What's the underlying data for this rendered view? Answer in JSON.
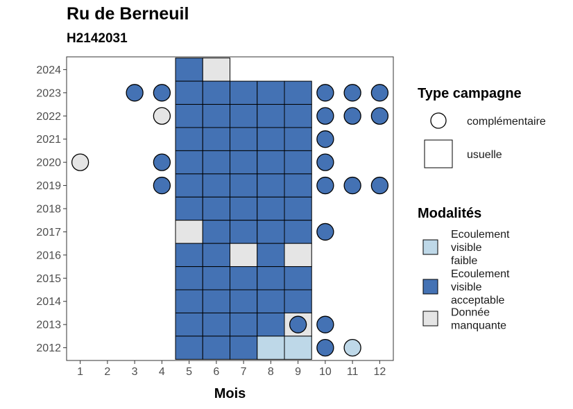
{
  "title": "Ru de Berneuil",
  "subtitle": "H2142031",
  "chart_data": {
    "type": "heatmap",
    "title": "Ru de Berneuil",
    "subtitle": "H2142031",
    "xlabel": "Mois",
    "ylabel": "",
    "x_ticks": [
      "1",
      "2",
      "3",
      "4",
      "5",
      "6",
      "7",
      "8",
      "9",
      "10",
      "11",
      "12"
    ],
    "y_ticks": [
      "2012",
      "2013",
      "2014",
      "2015",
      "2016",
      "2017",
      "2018",
      "2019",
      "2020",
      "2021",
      "2022",
      "2023",
      "2024"
    ],
    "xlim": [
      0.5,
      12.5
    ],
    "ylim": [
      2011.45,
      2024.55
    ],
    "grid": false,
    "legend_position": "right",
    "colors": {
      "Ecoulement visible faible": "#bed8e8",
      "Ecoulement visible acceptable": "#4472b4",
      "Donnée manquante": "#e5e5e5"
    },
    "legend_shape": {
      "title": "Type campagne",
      "entries": [
        {
          "label": "complémentaire",
          "shape": "circle"
        },
        {
          "label": "usuelle",
          "shape": "square"
        }
      ]
    },
    "legend_fill": {
      "title": "Modalités",
      "entries": [
        {
          "label_lines": [
            "Ecoulement",
            "visible",
            "faible"
          ],
          "key": "Ecoulement visible faible"
        },
        {
          "label_lines": [
            "Ecoulement",
            "visible",
            "acceptable"
          ],
          "key": "Ecoulement visible acceptable"
        },
        {
          "label_lines": [
            "Donnée",
            "manquante"
          ],
          "key": "Donnée manquante"
        }
      ]
    },
    "points": [
      {
        "year": 2024,
        "month": 5,
        "campaign": "usuelle",
        "modality": "Ecoulement visible acceptable"
      },
      {
        "year": 2024,
        "month": 6,
        "campaign": "usuelle",
        "modality": "Donnée manquante"
      },
      {
        "year": 2023,
        "month": 3,
        "campaign": "complémentaire",
        "modality": "Ecoulement visible acceptable"
      },
      {
        "year": 2023,
        "month": 4,
        "campaign": "complémentaire",
        "modality": "Ecoulement visible acceptable"
      },
      {
        "year": 2023,
        "month": 5,
        "campaign": "usuelle",
        "modality": "Ecoulement visible acceptable"
      },
      {
        "year": 2023,
        "month": 6,
        "campaign": "usuelle",
        "modality": "Ecoulement visible acceptable"
      },
      {
        "year": 2023,
        "month": 7,
        "campaign": "usuelle",
        "modality": "Ecoulement visible acceptable"
      },
      {
        "year": 2023,
        "month": 8,
        "campaign": "usuelle",
        "modality": "Ecoulement visible acceptable"
      },
      {
        "year": 2023,
        "month": 9,
        "campaign": "usuelle",
        "modality": "Ecoulement visible acceptable"
      },
      {
        "year": 2023,
        "month": 10,
        "campaign": "complémentaire",
        "modality": "Ecoulement visible acceptable"
      },
      {
        "year": 2023,
        "month": 11,
        "campaign": "complémentaire",
        "modality": "Ecoulement visible acceptable"
      },
      {
        "year": 2023,
        "month": 12,
        "campaign": "complémentaire",
        "modality": "Ecoulement visible acceptable"
      },
      {
        "year": 2022,
        "month": 4,
        "campaign": "complémentaire",
        "modality": "Donnée manquante"
      },
      {
        "year": 2022,
        "month": 5,
        "campaign": "usuelle",
        "modality": "Ecoulement visible acceptable"
      },
      {
        "year": 2022,
        "month": 6,
        "campaign": "usuelle",
        "modality": "Ecoulement visible acceptable"
      },
      {
        "year": 2022,
        "month": 7,
        "campaign": "usuelle",
        "modality": "Ecoulement visible acceptable"
      },
      {
        "year": 2022,
        "month": 8,
        "campaign": "usuelle",
        "modality": "Ecoulement visible acceptable"
      },
      {
        "year": 2022,
        "month": 9,
        "campaign": "usuelle",
        "modality": "Ecoulement visible acceptable"
      },
      {
        "year": 2022,
        "month": 10,
        "campaign": "complémentaire",
        "modality": "Ecoulement visible acceptable"
      },
      {
        "year": 2022,
        "month": 11,
        "campaign": "complémentaire",
        "modality": "Ecoulement visible acceptable"
      },
      {
        "year": 2022,
        "month": 12,
        "campaign": "complémentaire",
        "modality": "Ecoulement visible acceptable"
      },
      {
        "year": 2021,
        "month": 5,
        "campaign": "usuelle",
        "modality": "Ecoulement visible acceptable"
      },
      {
        "year": 2021,
        "month": 6,
        "campaign": "usuelle",
        "modality": "Ecoulement visible acceptable"
      },
      {
        "year": 2021,
        "month": 7,
        "campaign": "usuelle",
        "modality": "Ecoulement visible acceptable"
      },
      {
        "year": 2021,
        "month": 8,
        "campaign": "usuelle",
        "modality": "Ecoulement visible acceptable"
      },
      {
        "year": 2021,
        "month": 9,
        "campaign": "usuelle",
        "modality": "Ecoulement visible acceptable"
      },
      {
        "year": 2021,
        "month": 10,
        "campaign": "complémentaire",
        "modality": "Ecoulement visible acceptable"
      },
      {
        "year": 2020,
        "month": 1,
        "campaign": "complémentaire",
        "modality": "Donnée manquante"
      },
      {
        "year": 2020,
        "month": 4,
        "campaign": "complémentaire",
        "modality": "Ecoulement visible acceptable"
      },
      {
        "year": 2020,
        "month": 5,
        "campaign": "usuelle",
        "modality": "Ecoulement visible acceptable"
      },
      {
        "year": 2020,
        "month": 6,
        "campaign": "usuelle",
        "modality": "Ecoulement visible acceptable"
      },
      {
        "year": 2020,
        "month": 7,
        "campaign": "usuelle",
        "modality": "Ecoulement visible acceptable"
      },
      {
        "year": 2020,
        "month": 8,
        "campaign": "usuelle",
        "modality": "Ecoulement visible acceptable"
      },
      {
        "year": 2020,
        "month": 9,
        "campaign": "usuelle",
        "modality": "Ecoulement visible acceptable"
      },
      {
        "year": 2020,
        "month": 10,
        "campaign": "complémentaire",
        "modality": "Ecoulement visible acceptable"
      },
      {
        "year": 2019,
        "month": 4,
        "campaign": "complémentaire",
        "modality": "Ecoulement visible acceptable"
      },
      {
        "year": 2019,
        "month": 5,
        "campaign": "usuelle",
        "modality": "Ecoulement visible acceptable"
      },
      {
        "year": 2019,
        "month": 6,
        "campaign": "usuelle",
        "modality": "Ecoulement visible acceptable"
      },
      {
        "year": 2019,
        "month": 7,
        "campaign": "usuelle",
        "modality": "Ecoulement visible acceptable"
      },
      {
        "year": 2019,
        "month": 8,
        "campaign": "usuelle",
        "modality": "Ecoulement visible acceptable"
      },
      {
        "year": 2019,
        "month": 9,
        "campaign": "usuelle",
        "modality": "Ecoulement visible acceptable"
      },
      {
        "year": 2019,
        "month": 10,
        "campaign": "complémentaire",
        "modality": "Ecoulement visible acceptable"
      },
      {
        "year": 2019,
        "month": 11,
        "campaign": "complémentaire",
        "modality": "Ecoulement visible acceptable"
      },
      {
        "year": 2019,
        "month": 12,
        "campaign": "complémentaire",
        "modality": "Ecoulement visible acceptable"
      },
      {
        "year": 2018,
        "month": 5,
        "campaign": "usuelle",
        "modality": "Ecoulement visible acceptable"
      },
      {
        "year": 2018,
        "month": 6,
        "campaign": "usuelle",
        "modality": "Ecoulement visible acceptable"
      },
      {
        "year": 2018,
        "month": 7,
        "campaign": "usuelle",
        "modality": "Ecoulement visible acceptable"
      },
      {
        "year": 2018,
        "month": 8,
        "campaign": "usuelle",
        "modality": "Ecoulement visible acceptable"
      },
      {
        "year": 2018,
        "month": 9,
        "campaign": "usuelle",
        "modality": "Ecoulement visible acceptable"
      },
      {
        "year": 2017,
        "month": 5,
        "campaign": "usuelle",
        "modality": "Donnée manquante"
      },
      {
        "year": 2017,
        "month": 6,
        "campaign": "usuelle",
        "modality": "Ecoulement visible acceptable"
      },
      {
        "year": 2017,
        "month": 7,
        "campaign": "usuelle",
        "modality": "Ecoulement visible acceptable"
      },
      {
        "year": 2017,
        "month": 8,
        "campaign": "usuelle",
        "modality": "Ecoulement visible acceptable"
      },
      {
        "year": 2017,
        "month": 9,
        "campaign": "usuelle",
        "modality": "Ecoulement visible acceptable"
      },
      {
        "year": 2017,
        "month": 10,
        "campaign": "complémentaire",
        "modality": "Ecoulement visible acceptable"
      },
      {
        "year": 2016,
        "month": 5,
        "campaign": "usuelle",
        "modality": "Ecoulement visible acceptable"
      },
      {
        "year": 2016,
        "month": 6,
        "campaign": "usuelle",
        "modality": "Ecoulement visible acceptable"
      },
      {
        "year": 2016,
        "month": 7,
        "campaign": "usuelle",
        "modality": "Donnée manquante"
      },
      {
        "year": 2016,
        "month": 8,
        "campaign": "usuelle",
        "modality": "Ecoulement visible acceptable"
      },
      {
        "year": 2016,
        "month": 9,
        "campaign": "usuelle",
        "modality": "Donnée manquante"
      },
      {
        "year": 2015,
        "month": 5,
        "campaign": "usuelle",
        "modality": "Ecoulement visible acceptable"
      },
      {
        "year": 2015,
        "month": 6,
        "campaign": "usuelle",
        "modality": "Ecoulement visible acceptable"
      },
      {
        "year": 2015,
        "month": 7,
        "campaign": "usuelle",
        "modality": "Ecoulement visible acceptable"
      },
      {
        "year": 2015,
        "month": 8,
        "campaign": "usuelle",
        "modality": "Ecoulement visible acceptable"
      },
      {
        "year": 2015,
        "month": 9,
        "campaign": "usuelle",
        "modality": "Ecoulement visible acceptable"
      },
      {
        "year": 2014,
        "month": 5,
        "campaign": "usuelle",
        "modality": "Ecoulement visible acceptable"
      },
      {
        "year": 2014,
        "month": 6,
        "campaign": "usuelle",
        "modality": "Ecoulement visible acceptable"
      },
      {
        "year": 2014,
        "month": 7,
        "campaign": "usuelle",
        "modality": "Ecoulement visible acceptable"
      },
      {
        "year": 2014,
        "month": 8,
        "campaign": "usuelle",
        "modality": "Ecoulement visible acceptable"
      },
      {
        "year": 2014,
        "month": 9,
        "campaign": "usuelle",
        "modality": "Ecoulement visible acceptable"
      },
      {
        "year": 2013,
        "month": 5,
        "campaign": "usuelle",
        "modality": "Ecoulement visible acceptable"
      },
      {
        "year": 2013,
        "month": 6,
        "campaign": "usuelle",
        "modality": "Ecoulement visible acceptable"
      },
      {
        "year": 2013,
        "month": 7,
        "campaign": "usuelle",
        "modality": "Ecoulement visible acceptable"
      },
      {
        "year": 2013,
        "month": 8,
        "campaign": "usuelle",
        "modality": "Ecoulement visible acceptable"
      },
      {
        "year": 2013,
        "month": 9,
        "campaign": "usuelle",
        "modality": "Donnée manquante"
      },
      {
        "year": 2013,
        "month": 9,
        "campaign": "complémentaire",
        "modality": "Ecoulement visible acceptable"
      },
      {
        "year": 2013,
        "month": 10,
        "campaign": "complémentaire",
        "modality": "Ecoulement visible acceptable"
      },
      {
        "year": 2012,
        "month": 5,
        "campaign": "usuelle",
        "modality": "Ecoulement visible acceptable"
      },
      {
        "year": 2012,
        "month": 6,
        "campaign": "usuelle",
        "modality": "Ecoulement visible acceptable"
      },
      {
        "year": 2012,
        "month": 7,
        "campaign": "usuelle",
        "modality": "Ecoulement visible acceptable"
      },
      {
        "year": 2012,
        "month": 8,
        "campaign": "usuelle",
        "modality": "Ecoulement visible faible"
      },
      {
        "year": 2012,
        "month": 9,
        "campaign": "usuelle",
        "modality": "Ecoulement visible faible"
      },
      {
        "year": 2012,
        "month": 10,
        "campaign": "complémentaire",
        "modality": "Ecoulement visible acceptable"
      },
      {
        "year": 2012,
        "month": 11,
        "campaign": "complémentaire",
        "modality": "Ecoulement visible faible"
      }
    ]
  }
}
